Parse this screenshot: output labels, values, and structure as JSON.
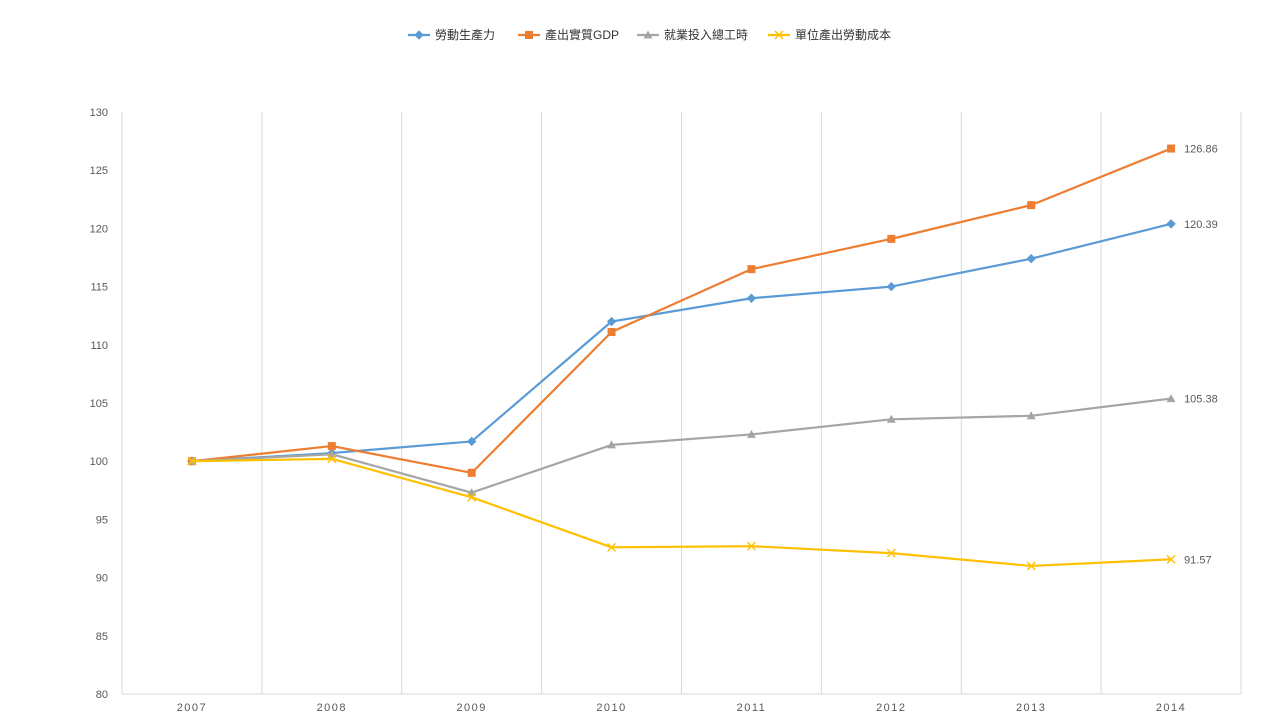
{
  "chart_data": {
    "type": "line",
    "title": "",
    "xlabel": "",
    "ylabel": "",
    "categories": [
      "2007",
      "2008",
      "2009",
      "2010",
      "2011",
      "2012",
      "2013",
      "2014"
    ],
    "ylim": [
      80,
      130
    ],
    "yticks": [
      "130",
      "125",
      "120",
      "115",
      "110",
      "105",
      "100",
      "95",
      "90",
      "85",
      "80"
    ],
    "grid": "vertical",
    "legend_position": "top",
    "series": [
      {
        "name": "勞動生產力",
        "color": "#5B9BD5",
        "marker": "diamond",
        "values": [
          100,
          100.7,
          101.7,
          112.0,
          114.0,
          115.0,
          117.4,
          120.39
        ],
        "end_label": "120.39"
      },
      {
        "name": "產出實質GDP",
        "color": "#ED7D31",
        "marker": "square",
        "values": [
          100,
          101.3,
          99.0,
          111.1,
          116.5,
          119.1,
          122.0,
          126.86
        ],
        "end_label": "126.86"
      },
      {
        "name": "就業投入總工時",
        "color": "#A5A5A5",
        "marker": "triangle",
        "values": [
          100,
          100.6,
          97.3,
          101.4,
          102.3,
          103.6,
          103.9,
          105.38
        ],
        "end_label": "105.38"
      },
      {
        "name": "單位產出勞動成本",
        "color": "#FFC000",
        "marker": "x",
        "values": [
          100,
          100.2,
          96.9,
          92.6,
          92.7,
          92.1,
          91.0,
          91.57
        ],
        "end_label": "91.57"
      }
    ]
  }
}
